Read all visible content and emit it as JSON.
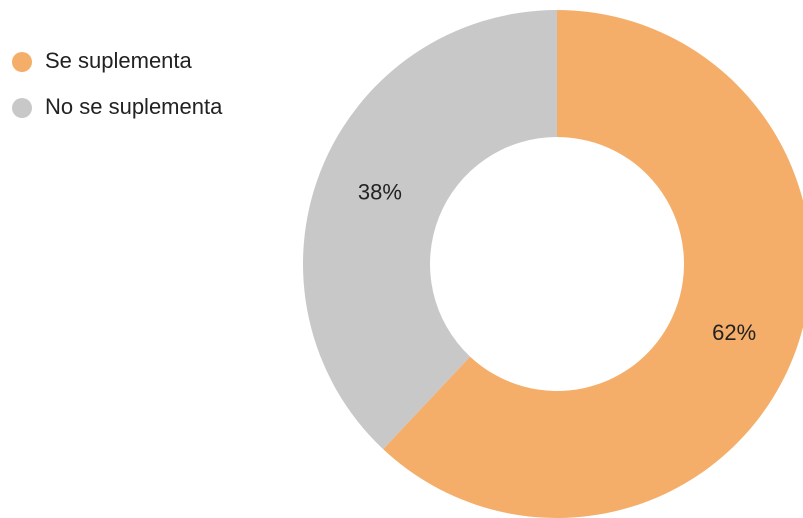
{
  "chart_data": {
    "type": "donut",
    "categories": [
      "Se suplementa",
      "No se suplementa"
    ],
    "values": [
      62,
      38
    ],
    "value_labels": [
      "62%",
      "38%"
    ],
    "colors": [
      "#f5ae69",
      "#c8c8c8"
    ],
    "legend": "top-left"
  }
}
